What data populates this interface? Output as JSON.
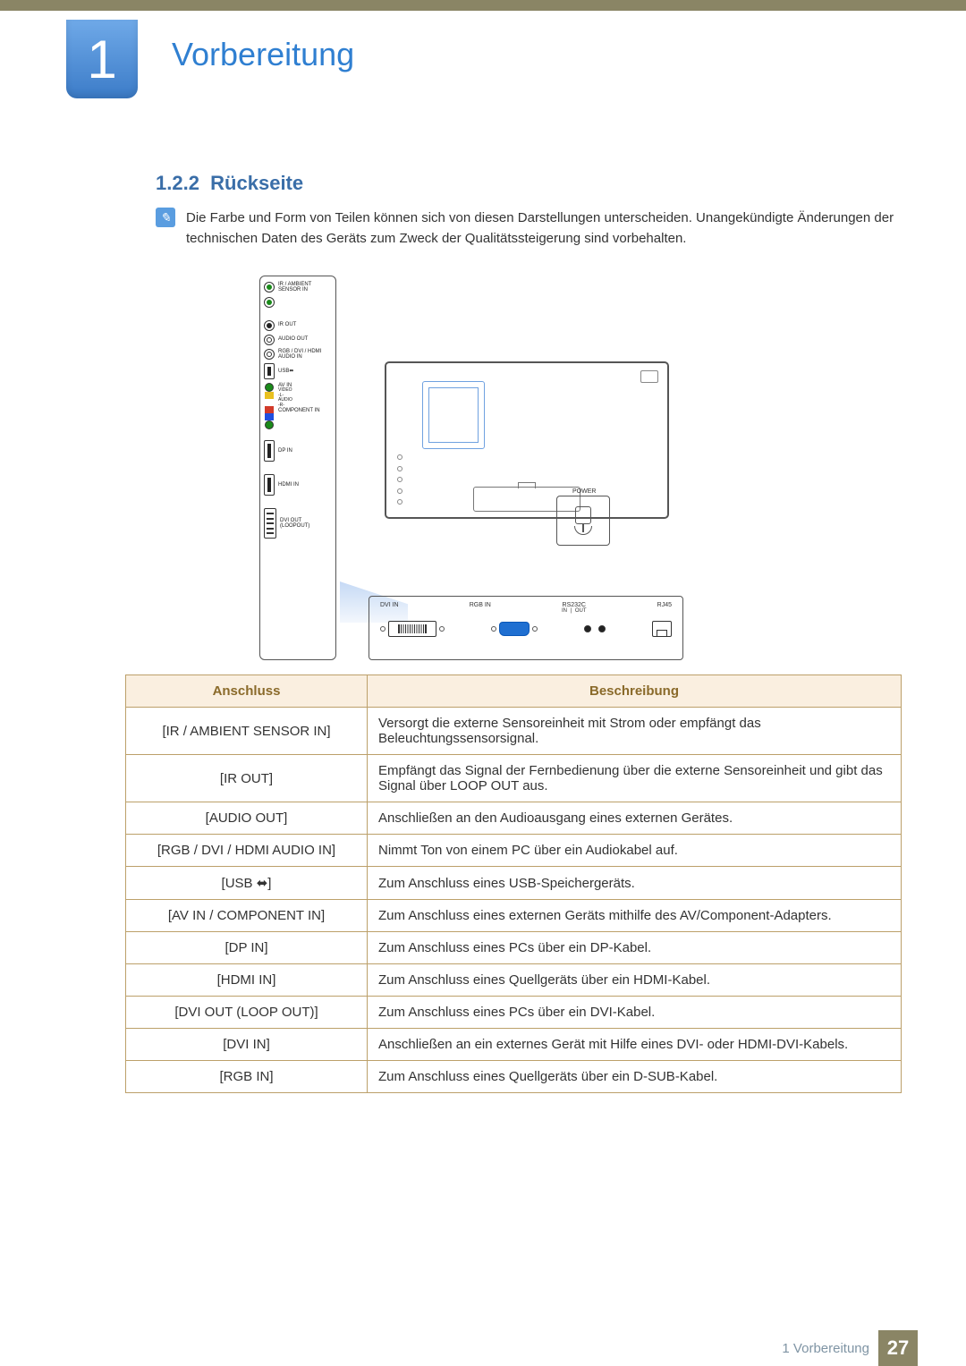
{
  "colors": {
    "top_bar": "#8a8565",
    "badge_gradient_top": "#6fa9e8",
    "badge_gradient_bottom": "#3c7cc8",
    "accent_blue": "#2f7fd1",
    "heading_blue": "#3a6ea8",
    "table_border": "#bca06a",
    "table_header_bg": "#faefe0",
    "table_header_text": "#8a6a2a",
    "footer_text": "#7f94a4",
    "footer_page_bg": "#8a8565"
  },
  "chapter": {
    "number": "1",
    "title": "Vorbereitung"
  },
  "section": {
    "number": "1.2.2",
    "title": "Rückseite"
  },
  "note": "Die Farbe und Form von Teilen können sich von diesen Darstellungen unterscheiden. Unangekündigte Änderungen der technischen Daten des Geräts zum Zweck der Qualitätssteigerung sind vorbehalten.",
  "diagram": {
    "left_ports": {
      "ir_sensor": "IR / AMBIENT SENSOR IN",
      "ir_out": "IR OUT",
      "audio_out": "AUDIO OUT",
      "rgb_dvi_hdmi_audio_in": "RGB / DVI / HDMI AUDIO IN",
      "usb": "USB",
      "av_in_header": "AV IN",
      "av_labels": {
        "video": "VIDEO",
        "l": "-L-",
        "audio": "AUDIO",
        "r": "-R-"
      },
      "component_in": "COMPONENT IN",
      "dp_in": "DP IN",
      "hdmi_in": "HDMI IN",
      "dvi_out": "DVI OUT (LOOPOUT)"
    },
    "bottom_ports": {
      "dvi_in": "DVI IN",
      "rgb_in": "RGB IN",
      "rs232c": "RS232C",
      "rs232c_in": "IN",
      "rs232c_out": "OUT",
      "rj45": "RJ45"
    },
    "power_label": "POWER",
    "av_colors": {
      "green": "#1a8a1a",
      "yellow": "#e8c020",
      "red": "#d23a2a",
      "white": "#ffffff",
      "blue": "#1f4fe0"
    }
  },
  "table": {
    "headers": {
      "port": "Anschluss",
      "desc": "Beschreibung"
    },
    "rows": [
      {
        "port": "[IR / AMBIENT SENSOR IN]",
        "desc": "Versorgt die externe Sensoreinheit mit Strom oder empfängt das Beleuchtungssensorsignal."
      },
      {
        "port": "[IR OUT]",
        "desc": "Empfängt das Signal der Fernbedienung über die externe Sensoreinheit und gibt das Signal über LOOP OUT aus."
      },
      {
        "port": "[AUDIO OUT]",
        "desc": "Anschließen an den Audioausgang eines externen Gerätes."
      },
      {
        "port": "[RGB / DVI / HDMI AUDIO IN]",
        "desc": "Nimmt Ton von einem PC über ein Audiokabel auf."
      },
      {
        "port": "[USB ⬌]",
        "desc": "Zum Anschluss eines USB-Speichergeräts."
      },
      {
        "port": "[AV IN / COMPONENT IN]",
        "desc": "Zum Anschluss eines externen Geräts mithilfe des AV/Component-Adapters."
      },
      {
        "port": "[DP IN]",
        "desc": "Zum Anschluss eines PCs über ein DP-Kabel."
      },
      {
        "port": "[HDMI IN]",
        "desc": "Zum Anschluss eines Quellgeräts über ein HDMI-Kabel."
      },
      {
        "port": "[DVI OUT (LOOP OUT)]",
        "desc": "Zum Anschluss eines PCs über ein DVI-Kabel."
      },
      {
        "port": "[DVI IN]",
        "desc": "Anschließen an ein externes Gerät mit Hilfe eines DVI- oder HDMI-DVI-Kabels."
      },
      {
        "port": "[RGB IN]",
        "desc": "Zum Anschluss eines Quellgeräts über ein D-SUB-Kabel."
      }
    ]
  },
  "footer": {
    "label": "1 Vorbereitung",
    "page": "27"
  }
}
